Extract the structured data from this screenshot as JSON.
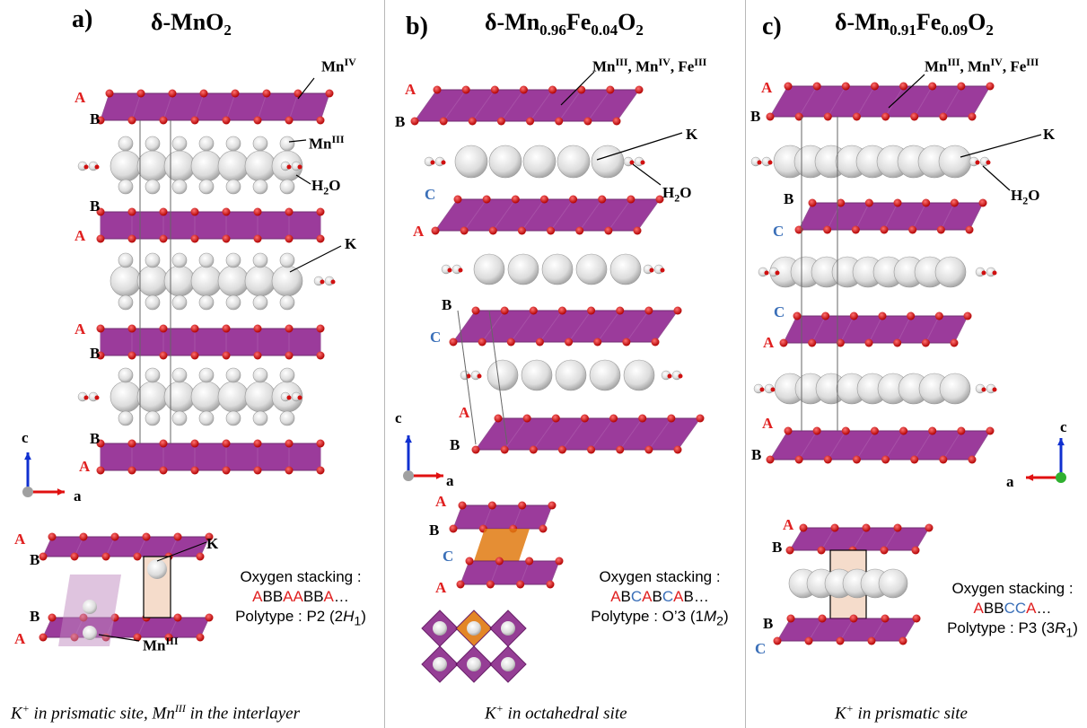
{
  "panels": [
    {
      "letter": "a)",
      "title_base": "δ-MnO",
      "title_sub": "2",
      "label_mn": "Mn",
      "label_mn_sup": "IV",
      "label_mn3": "Mn",
      "label_mn3_sup": "III",
      "label_h2o_a": "H",
      "label_h2o_b": "2",
      "label_h2o_c": "O",
      "label_k": "K",
      "stack_letters": [
        "A",
        "B",
        "B",
        "A",
        "A",
        "B",
        "B",
        "A"
      ],
      "inset_k": "K",
      "inset_mn": "Mn",
      "inset_mn_sup": "III",
      "inset_stack": [
        "A",
        "B",
        "B",
        "A"
      ],
      "oxygen_label": "Oxygen stacking :",
      "oxygen_seq": "ABBAABBA…",
      "polytype_label": "Polytype : P2 (2",
      "polytype_italic": "H",
      "polytype_sub": "1",
      "polytype_end": ")",
      "caption_a": "K",
      "caption_a_sup": "+",
      "caption_b": " in prismatic site, Mn",
      "caption_b_sup": "III",
      "caption_c": " in the interlayer"
    },
    {
      "letter": "b)",
      "title_base": "δ-Mn",
      "title_sub1": "0.96",
      "title_mid": "Fe",
      "title_sub2": "0.04",
      "title_o": "O",
      "title_sub3": "2",
      "label_mix": "Mn",
      "label_mix_s1": "III",
      "label_mix_b": ", Mn",
      "label_mix_s2": "IV",
      "label_mix_c": ", Fe",
      "label_mix_s3": "III",
      "label_k": "K",
      "label_h2o_a": "H",
      "label_h2o_b": "2",
      "label_h2o_c": "O",
      "stack_letters": [
        "A",
        "B",
        "C",
        "A",
        "B",
        "C",
        "A",
        "B"
      ],
      "inset_stack": [
        "A",
        "B",
        "C",
        "A"
      ],
      "oxygen_label": "Oxygen stacking :",
      "oxygen_seq": "ABCABCAB…",
      "polytype_label": "Polytype : O’3 (1",
      "polytype_italic": "M",
      "polytype_sub": "2",
      "polytype_end": ")",
      "caption_a": "K",
      "caption_a_sup": "+",
      "caption_b": " in octahedral site"
    },
    {
      "letter": "c)",
      "title_base": "δ-Mn",
      "title_sub1": "0.91",
      "title_mid": "Fe",
      "title_sub2": "0.09",
      "title_o": "O",
      "title_sub3": "2",
      "label_mix": "Mn",
      "label_mix_s1": "III",
      "label_mix_b": ", Mn",
      "label_mix_s2": "IV",
      "label_mix_c": ", Fe",
      "label_mix_s3": "III",
      "label_k": "K",
      "label_h2o_a": "H",
      "label_h2o_b": "2",
      "label_h2o_c": "O",
      "stack_letters": [
        "A",
        "B",
        "B",
        "C",
        "C",
        "A",
        "A",
        "B"
      ],
      "inset_stack": [
        "A",
        "B",
        "B",
        "C"
      ],
      "oxygen_label": "Oxygen stacking :",
      "oxygen_seq": "ABBCCA…",
      "polytype_label": "Polytype : P3 (3",
      "polytype_italic": "R",
      "polytype_sub": "1",
      "polytype_end": ")",
      "caption_a": "K",
      "caption_a_sup": "+",
      "caption_b": " in prismatic site"
    }
  ],
  "axes": {
    "c": "c",
    "a": "a"
  },
  "colors": {
    "mn_layer": "#8a1a8a",
    "oxygen": "#d01010",
    "water_k": "#e8e8e8",
    "octa_fe": "#e07a10",
    "prism": "#f5dccb"
  }
}
